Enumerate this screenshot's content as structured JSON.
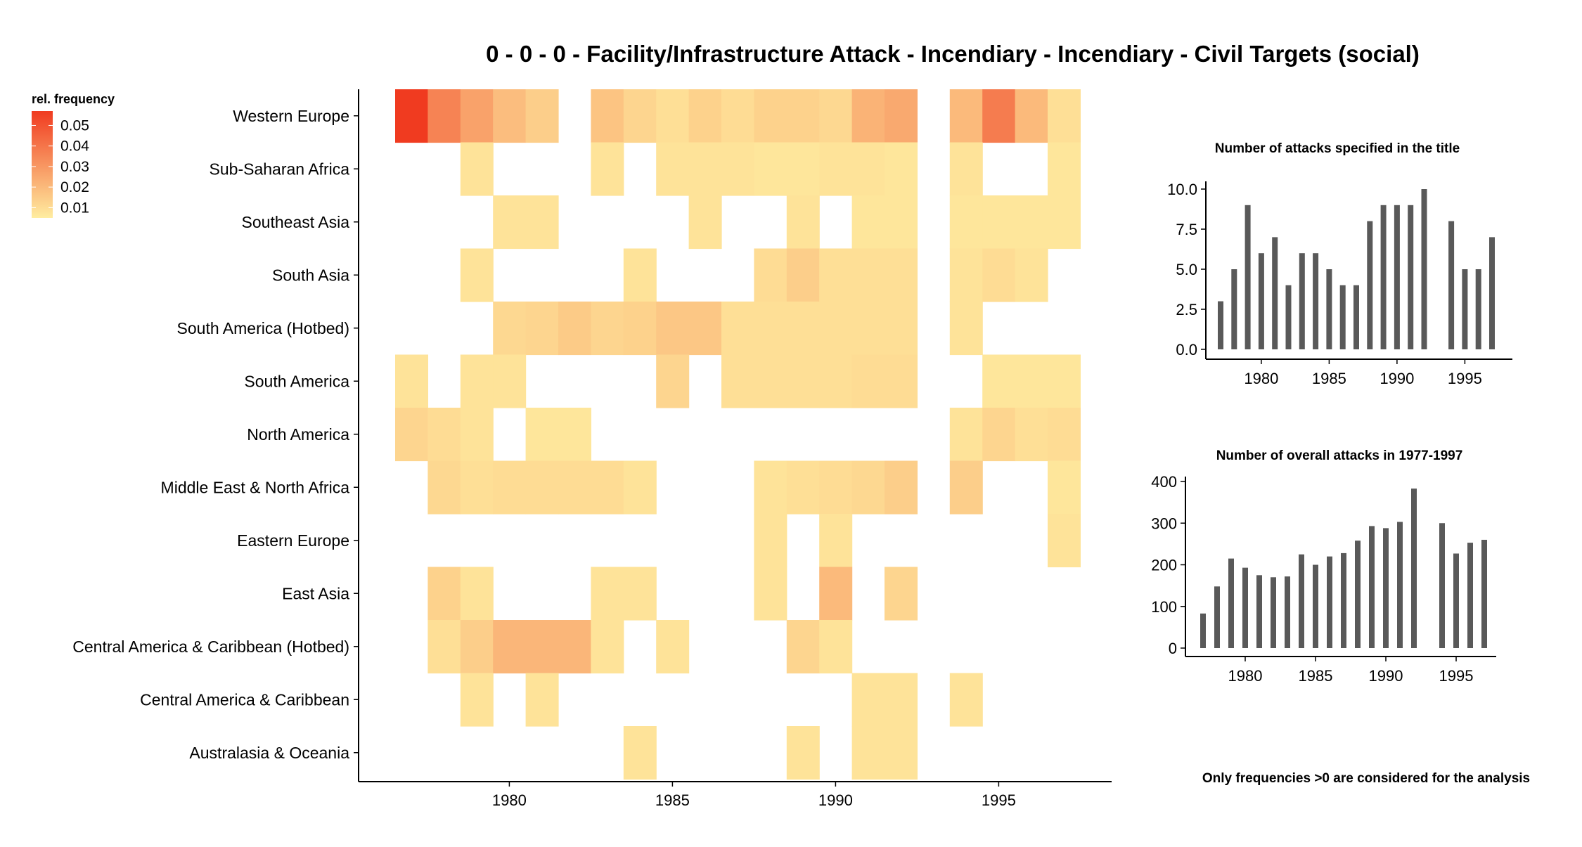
{
  "title": "0 - 0 - 0 - Facility/Infrastructure Attack - Incendiary - Incendiary - Civil Targets (social)",
  "footnote": "Only frequencies >0 are considered for the analysis",
  "chart_data": [
    {
      "type": "heatmap",
      "title": "",
      "xlabel": "",
      "ylabel": "",
      "legend": {
        "title": "rel. frequency",
        "ticks": [
          "0.05",
          "0.04",
          "0.03",
          "0.02",
          "0.01"
        ],
        "tick_values": [
          0.05,
          0.04,
          0.03,
          0.02,
          0.01
        ],
        "range": [
          0.005,
          0.057
        ],
        "low_color": "#FFEDA0",
        "high_color": "#F03B20"
      },
      "x": [
        1977,
        1978,
        1979,
        1980,
        1981,
        1982,
        1983,
        1984,
        1985,
        1986,
        1987,
        1988,
        1989,
        1990,
        1991,
        1992,
        1993,
        1994,
        1995,
        1996,
        1997
      ],
      "x_ticks": [
        "1980",
        "1985",
        "1990",
        "1995"
      ],
      "x_tick_values": [
        1980,
        1985,
        1990,
        1995
      ],
      "y": [
        "Western Europe",
        "Sub-Saharan Africa",
        "Southeast Asia",
        "South Asia",
        "South America (Hotbed)",
        "South America",
        "North America",
        "Middle East & North Africa",
        "Eastern Europe",
        "East Asia",
        "Central America & Caribbean (Hotbed)",
        "Central America & Caribbean",
        "Australasia & Oceania"
      ],
      "values": [
        [
          0.057,
          0.036,
          0.027,
          0.019,
          0.014,
          null,
          0.017,
          0.012,
          0.009,
          0.013,
          0.01,
          0.013,
          0.013,
          0.011,
          0.022,
          0.025,
          null,
          0.02,
          0.038,
          0.02,
          0.009
        ],
        [
          null,
          null,
          0.008,
          null,
          null,
          null,
          0.008,
          null,
          0.008,
          0.008,
          0.008,
          0.007,
          0.007,
          0.008,
          0.008,
          0.007,
          null,
          0.008,
          null,
          null,
          0.007
        ],
        [
          null,
          null,
          null,
          0.008,
          0.008,
          null,
          null,
          null,
          null,
          0.008,
          null,
          null,
          0.008,
          null,
          0.007,
          0.007,
          null,
          0.007,
          0.007,
          0.007,
          0.007
        ],
        [
          null,
          null,
          0.008,
          null,
          null,
          null,
          null,
          0.008,
          null,
          null,
          null,
          0.01,
          0.014,
          0.009,
          0.009,
          0.009,
          null,
          0.008,
          0.01,
          0.008,
          null
        ],
        [
          null,
          null,
          null,
          0.011,
          0.012,
          0.015,
          0.012,
          0.013,
          0.016,
          0.016,
          0.009,
          0.009,
          0.009,
          0.009,
          0.009,
          0.009,
          null,
          0.008,
          null,
          null,
          null
        ],
        [
          0.008,
          null,
          0.008,
          0.008,
          null,
          null,
          null,
          null,
          0.012,
          null,
          0.009,
          0.009,
          0.009,
          0.009,
          0.01,
          0.01,
          null,
          null,
          0.007,
          0.007,
          0.007
        ],
        [
          0.012,
          0.01,
          0.008,
          null,
          0.007,
          0.007,
          null,
          null,
          null,
          null,
          null,
          null,
          null,
          null,
          null,
          null,
          null,
          0.008,
          0.012,
          0.009,
          0.01
        ],
        [
          null,
          0.011,
          0.009,
          0.01,
          0.01,
          0.01,
          0.01,
          0.008,
          null,
          null,
          null,
          0.008,
          0.009,
          0.01,
          0.011,
          0.014,
          null,
          0.014,
          null,
          null,
          0.007
        ],
        [
          null,
          null,
          null,
          null,
          null,
          null,
          null,
          null,
          null,
          null,
          null,
          0.008,
          null,
          0.008,
          null,
          null,
          null,
          null,
          null,
          null,
          0.008
        ],
        [
          null,
          0.013,
          0.008,
          null,
          null,
          null,
          0.008,
          0.008,
          null,
          null,
          null,
          0.008,
          null,
          0.02,
          null,
          0.012,
          null,
          null,
          null,
          null,
          null
        ],
        [
          null,
          0.009,
          0.014,
          0.021,
          0.021,
          0.021,
          0.008,
          null,
          0.008,
          null,
          null,
          null,
          0.012,
          0.008,
          null,
          null,
          null,
          null,
          null,
          null,
          null
        ],
        [
          null,
          null,
          0.008,
          null,
          0.008,
          null,
          null,
          null,
          null,
          null,
          null,
          null,
          null,
          null,
          0.008,
          0.008,
          null,
          0.008,
          null,
          null,
          null
        ],
        [
          null,
          null,
          null,
          null,
          null,
          null,
          null,
          0.008,
          null,
          null,
          null,
          null,
          0.008,
          null,
          0.008,
          0.008,
          null,
          null,
          null,
          null,
          null
        ]
      ]
    },
    {
      "type": "bar",
      "title": "Number of attacks specified in the title",
      "xlabel": "",
      "ylabel": "",
      "x": [
        1977,
        1978,
        1979,
        1980,
        1981,
        1982,
        1983,
        1984,
        1985,
        1986,
        1987,
        1988,
        1989,
        1990,
        1991,
        1992,
        1994,
        1995,
        1996,
        1997
      ],
      "values": [
        3,
        5,
        9,
        6,
        7,
        4,
        6,
        6,
        5,
        4,
        4,
        8,
        9,
        9,
        9,
        10,
        8,
        5,
        5,
        7
      ],
      "ylim": [
        0,
        10
      ],
      "y_ticks": [
        "0.0",
        "2.5",
        "5.0",
        "7.5",
        "10.0"
      ],
      "y_tick_values": [
        0,
        2.5,
        5,
        7.5,
        10
      ],
      "x_ticks": [
        "1980",
        "1985",
        "1990",
        "1995"
      ],
      "x_tick_values": [
        1980,
        1985,
        1990,
        1995
      ],
      "bar_color": "#595959"
    },
    {
      "type": "bar",
      "title": "Number of overall attacks in 1977-1997",
      "xlabel": "",
      "ylabel": "",
      "x": [
        1977,
        1978,
        1979,
        1980,
        1981,
        1982,
        1983,
        1984,
        1985,
        1986,
        1987,
        1988,
        1989,
        1990,
        1991,
        1992,
        1994,
        1995,
        1996,
        1997
      ],
      "values": [
        83,
        148,
        215,
        193,
        175,
        170,
        172,
        225,
        200,
        220,
        228,
        258,
        293,
        288,
        303,
        383,
        300,
        227,
        253,
        260
      ],
      "ylim": [
        0,
        400
      ],
      "y_ticks": [
        "0",
        "100",
        "200",
        "300",
        "400"
      ],
      "y_tick_values": [
        0,
        100,
        200,
        300,
        400
      ],
      "x_ticks": [
        "1980",
        "1985",
        "1990",
        "1995"
      ],
      "x_tick_values": [
        1980,
        1985,
        1990,
        1995
      ],
      "bar_color": "#595959"
    }
  ]
}
